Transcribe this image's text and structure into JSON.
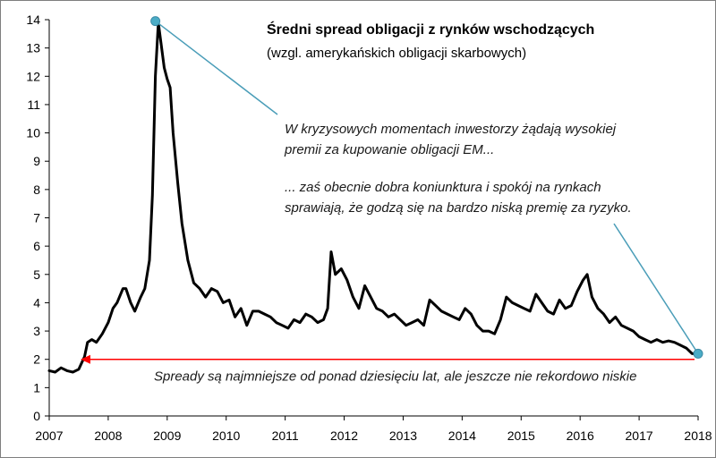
{
  "chart_data": {
    "type": "line",
    "title": "Średni spread obligacji z rynków wschodzących",
    "subtitle": "(wzgl. amerykańskich obligacji skarbowych)",
    "xlabel": "",
    "ylabel": "",
    "xlim": [
      2007,
      2018
    ],
    "ylim": [
      0,
      14
    ],
    "x_ticks": [
      "2007",
      "2008",
      "2009",
      "2010",
      "2011",
      "2012",
      "2013",
      "2014",
      "2015",
      "2016",
      "2017",
      "2018"
    ],
    "y_ticks": [
      "0",
      "1",
      "2",
      "3",
      "4",
      "5",
      "6",
      "7",
      "8",
      "9",
      "10",
      "11",
      "12",
      "13",
      "14"
    ],
    "grid": false,
    "legend": "none",
    "series": [
      {
        "color": "#000000",
        "x": [
          2007.0,
          2007.1,
          2007.2,
          2007.3,
          2007.4,
          2007.5,
          2007.6,
          2007.65,
          2007.72,
          2007.8,
          2007.9,
          2008.0,
          2008.08,
          2008.15,
          2008.25,
          2008.3,
          2008.38,
          2008.45,
          2008.55,
          2008.62,
          2008.7,
          2008.75,
          2008.8,
          2008.85,
          2008.9,
          2008.95,
          2009.0,
          2009.05,
          2009.1,
          2009.18,
          2009.25,
          2009.35,
          2009.45,
          2009.55,
          2009.65,
          2009.75,
          2009.85,
          2009.95,
          2010.05,
          2010.15,
          2010.25,
          2010.35,
          2010.45,
          2010.55,
          2010.65,
          2010.75,
          2010.85,
          2010.95,
          2011.05,
          2011.15,
          2011.25,
          2011.35,
          2011.45,
          2011.55,
          2011.65,
          2011.72,
          2011.78,
          2011.85,
          2011.95,
          2012.05,
          2012.15,
          2012.25,
          2012.35,
          2012.45,
          2012.55,
          2012.65,
          2012.75,
          2012.85,
          2012.95,
          2013.05,
          2013.15,
          2013.25,
          2013.35,
          2013.45,
          2013.55,
          2013.65,
          2013.75,
          2013.85,
          2013.95,
          2014.05,
          2014.15,
          2014.25,
          2014.35,
          2014.45,
          2014.55,
          2014.65,
          2014.75,
          2014.85,
          2014.95,
          2015.05,
          2015.15,
          2015.25,
          2015.35,
          2015.45,
          2015.55,
          2015.65,
          2015.75,
          2015.85,
          2015.95,
          2016.05,
          2016.12,
          2016.2,
          2016.3,
          2016.4,
          2016.5,
          2016.6,
          2016.7,
          2016.8,
          2016.9,
          2017.0,
          2017.1,
          2017.2,
          2017.3,
          2017.4,
          2017.5,
          2017.6,
          2017.7,
          2017.8,
          2017.9,
          2018.0
        ],
        "y": [
          1.6,
          1.55,
          1.7,
          1.6,
          1.55,
          1.65,
          2.1,
          2.6,
          2.7,
          2.6,
          2.9,
          3.3,
          3.8,
          4.0,
          4.5,
          4.5,
          4.0,
          3.7,
          4.2,
          4.5,
          5.5,
          7.8,
          12.0,
          13.9,
          13.1,
          12.3,
          11.9,
          11.6,
          10.0,
          8.2,
          6.8,
          5.5,
          4.7,
          4.5,
          4.2,
          4.5,
          4.4,
          4.0,
          4.1,
          3.5,
          3.8,
          3.2,
          3.7,
          3.7,
          3.6,
          3.5,
          3.3,
          3.2,
          3.1,
          3.4,
          3.3,
          3.6,
          3.5,
          3.3,
          3.4,
          3.8,
          5.8,
          5.0,
          5.2,
          4.8,
          4.2,
          3.8,
          4.6,
          4.2,
          3.8,
          3.7,
          3.5,
          3.6,
          3.4,
          3.2,
          3.3,
          3.4,
          3.2,
          4.1,
          3.9,
          3.7,
          3.6,
          3.5,
          3.4,
          3.8,
          3.6,
          3.2,
          3.0,
          3.0,
          2.9,
          3.4,
          4.2,
          4.0,
          3.9,
          3.8,
          3.7,
          4.3,
          4.0,
          3.7,
          3.6,
          4.1,
          3.8,
          3.9,
          4.4,
          4.8,
          5.0,
          4.2,
          3.8,
          3.6,
          3.3,
          3.5,
          3.2,
          3.1,
          3.0,
          2.8,
          2.7,
          2.6,
          2.7,
          2.6,
          2.65,
          2.6,
          2.5,
          2.4,
          2.2,
          2.2
        ]
      }
    ],
    "annotations": {
      "top_lines": [
        "W kryzysowych momentach inwestorzy żądają wysokiej",
        "premii za kupowanie obligacji EM..."
      ],
      "bottom_lines": [
        "... zaś obecnie dobra koniunktura i spokój na rynkach",
        "sprawiają, że godzą się na bardzo niską premię za ryzyko."
      ],
      "arrow_text": "Spready są najmniejsze od ponad dziesięciu lat, ale jeszcze nie rekordowo niskie"
    },
    "colors": {
      "line": "#000000",
      "marker": "#4bacc6",
      "pointer": "#4a9db8",
      "arrow": "#ff0000",
      "axis": "#000000",
      "border": "#7f7f7f"
    },
    "peak_point": {
      "x": 2008.8,
      "y": 13.95
    },
    "end_point": {
      "x": 2018.0,
      "y": 2.2
    },
    "arrow_y": 2.0
  }
}
